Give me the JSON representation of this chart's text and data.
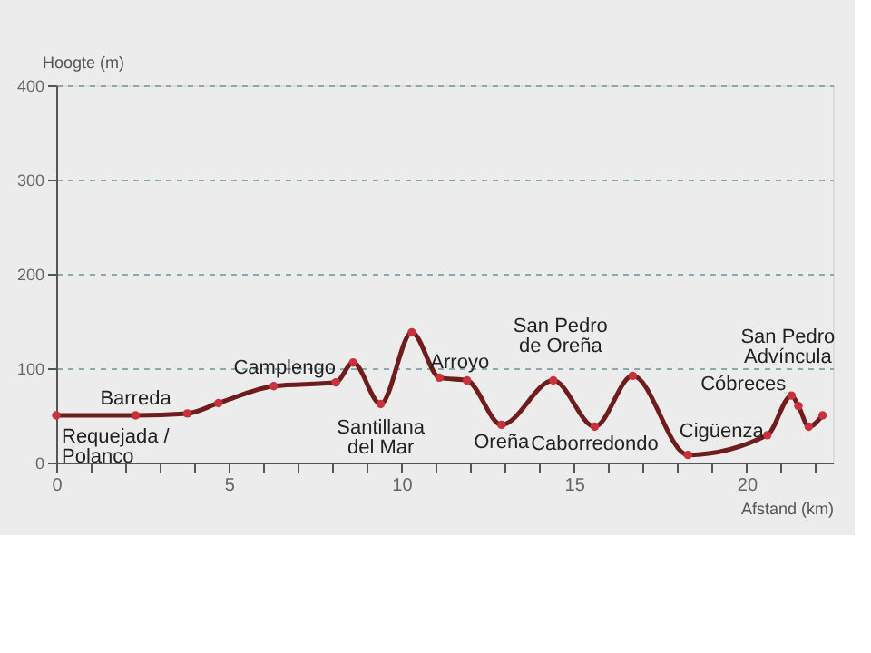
{
  "chart_data": {
    "type": "line",
    "xlabel": "Afstand (km)",
    "ylabel": "Hoogte (m)",
    "x": [
      0,
      2.3,
      3.8,
      4.7,
      6.3,
      8.1,
      8.6,
      9.4,
      10.3,
      11.1,
      11.9,
      12.9,
      14.4,
      15.6,
      16.7,
      18.3,
      20.6,
      21.3,
      21.5,
      21.8,
      22.2
    ],
    "series": [
      {
        "color": "#6e1c1c",
        "values": [
          50,
          50,
          52,
          63,
          81,
          85,
          106,
          62,
          138,
          90,
          87,
          40,
          87,
          38,
          92,
          8,
          29,
          71,
          60,
          38,
          50
        ]
      }
    ],
    "xlim": [
      0,
      22.5
    ],
    "ylim": [
      0,
      400
    ],
    "xticks": [
      0,
      {
        "value": 1,
        "label": null
      },
      {
        "value": 2,
        "label": null
      },
      {
        "value": 3,
        "label": null
      },
      {
        "value": 4,
        "label": null
      },
      5,
      {
        "value": 6,
        "label": null
      },
      {
        "value": 7,
        "label": null
      },
      {
        "value": 8,
        "label": null
      },
      {
        "value": 9,
        "label": null
      },
      10,
      {
        "value": 11,
        "label": null
      },
      {
        "value": 12,
        "label": null
      },
      {
        "value": 13,
        "label": null
      },
      {
        "value": 14,
        "label": null
      },
      15,
      {
        "value": 16,
        "label": null
      },
      {
        "value": 17,
        "label": null
      },
      {
        "value": 18,
        "label": null
      },
      {
        "value": 19,
        "label": null
      },
      20,
      {
        "value": 21,
        "label": null
      },
      {
        "value": 22,
        "label": null
      }
    ],
    "yticks": [
      0,
      100,
      200,
      300,
      400
    ],
    "grid": "y",
    "marker": "circle",
    "line_style": "solid",
    "annotations": [
      {
        "text": "Requejada /\nPolanco",
        "x": 0,
        "y": 50
      },
      {
        "text": "Barreda",
        "x": 2.3,
        "y": 50
      },
      {
        "text": "Camplengo",
        "x": 6.3,
        "y": 81
      },
      {
        "text": "Santillana\ndel Mar",
        "x": 9.4,
        "y": 62
      },
      {
        "text": "Arroyo",
        "x": 11.9,
        "y": 87
      },
      {
        "text": "Oreña",
        "x": 12.9,
        "y": 40
      },
      {
        "text": "San Pedro\nde Oreña",
        "x": 14.4,
        "y": 87
      },
      {
        "text": "Caborredondo",
        "x": 15.6,
        "y": 38
      },
      {
        "text": "Cigüenza",
        "x": 20.6,
        "y": 29
      },
      {
        "text": "Cóbreces",
        "x": 21.3,
        "y": 71
      },
      {
        "text": "San Pedro\nAdvíncula",
        "x": 21.3,
        "y": 71
      }
    ]
  }
}
